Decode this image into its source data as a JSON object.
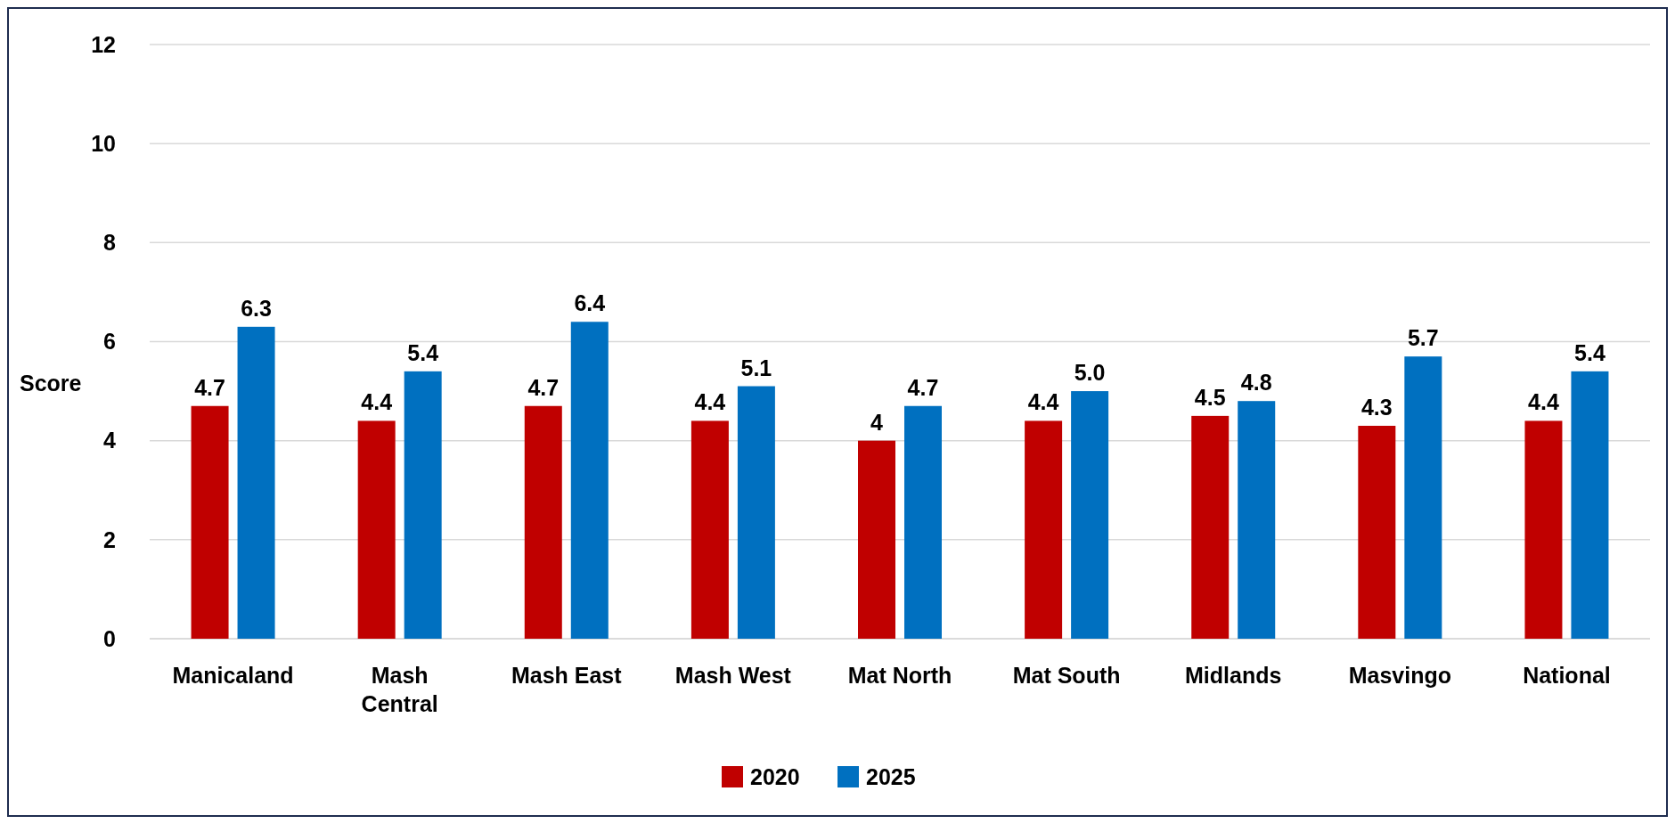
{
  "chart_data": {
    "type": "bar",
    "ylabel": "Score",
    "categories": [
      "Manicaland",
      "Mash Central",
      "Mash East",
      "Mash West",
      "Mat North",
      "Mat South",
      "Midlands",
      "Masvingo",
      "National"
    ],
    "series": [
      {
        "name": "2020",
        "color": "#c00000",
        "values": [
          4.7,
          4.4,
          4.7,
          4.4,
          4,
          4.4,
          4.5,
          4.3,
          4.4
        ],
        "value_labels": [
          "4.7",
          "4.4",
          "4.7",
          "4.4",
          "4",
          "4.4",
          "4.5",
          "4.3",
          "4.4"
        ]
      },
      {
        "name": "2025",
        "color": "#0070c0",
        "values": [
          6.3,
          5.4,
          6.4,
          5.1,
          4.7,
          5.0,
          4.8,
          5.7,
          5.4
        ],
        "value_labels": [
          "6.3",
          "5.4",
          "6.4",
          "5.1",
          "4.7",
          "5.0",
          "4.8",
          "5.7",
          "5.4"
        ]
      }
    ],
    "ylim": [
      0,
      12
    ],
    "yticks": [
      0,
      2,
      4,
      6,
      8,
      10,
      12
    ],
    "grid": "y",
    "legend": "bottom"
  }
}
